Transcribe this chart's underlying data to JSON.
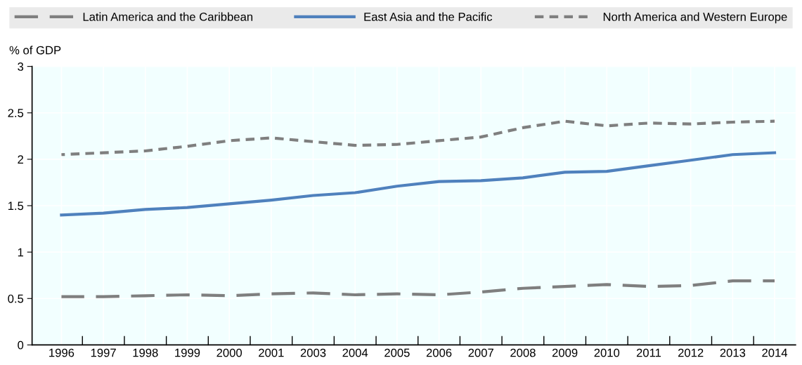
{
  "chart_data": {
    "type": "line",
    "ylabel": "% of GDP",
    "categories": [
      "1996",
      "1997",
      "1998",
      "1999",
      "2000",
      "2001",
      "2003",
      "2004",
      "2005",
      "2006",
      "2007",
      "2008",
      "2009",
      "2010",
      "2011",
      "2012",
      "2013",
      "2014"
    ],
    "series": [
      {
        "name": "Latin America and the Caribbean",
        "color": "#7f7f7f",
        "line_style": "dashed",
        "values": [
          0.52,
          0.52,
          0.53,
          0.54,
          0.53,
          0.55,
          0.56,
          0.54,
          0.55,
          0.54,
          0.57,
          0.61,
          0.63,
          0.65,
          0.63,
          0.64,
          0.69,
          0.69
        ]
      },
      {
        "name": "East Asia and the Pacific",
        "color": "#4f81bd",
        "line_style": "solid",
        "values": [
          1.4,
          1.42,
          1.46,
          1.48,
          1.52,
          1.56,
          1.61,
          1.64,
          1.71,
          1.76,
          1.77,
          1.8,
          1.86,
          1.87,
          1.93,
          1.99,
          2.05,
          2.07
        ]
      },
      {
        "name": "North America and Western Europe",
        "color": "#7f7f7f",
        "line_style": "dotted",
        "values": [
          2.05,
          2.07,
          2.09,
          2.14,
          2.2,
          2.23,
          2.19,
          2.15,
          2.16,
          2.2,
          2.24,
          2.34,
          2.41,
          2.36,
          2.39,
          2.38,
          2.4,
          2.41
        ]
      }
    ],
    "ylim": [
      0,
      3
    ],
    "yticks": [
      0,
      0.5,
      1,
      1.5,
      2,
      2.5,
      3
    ],
    "grid": true,
    "legend": "top",
    "marker": "none"
  }
}
